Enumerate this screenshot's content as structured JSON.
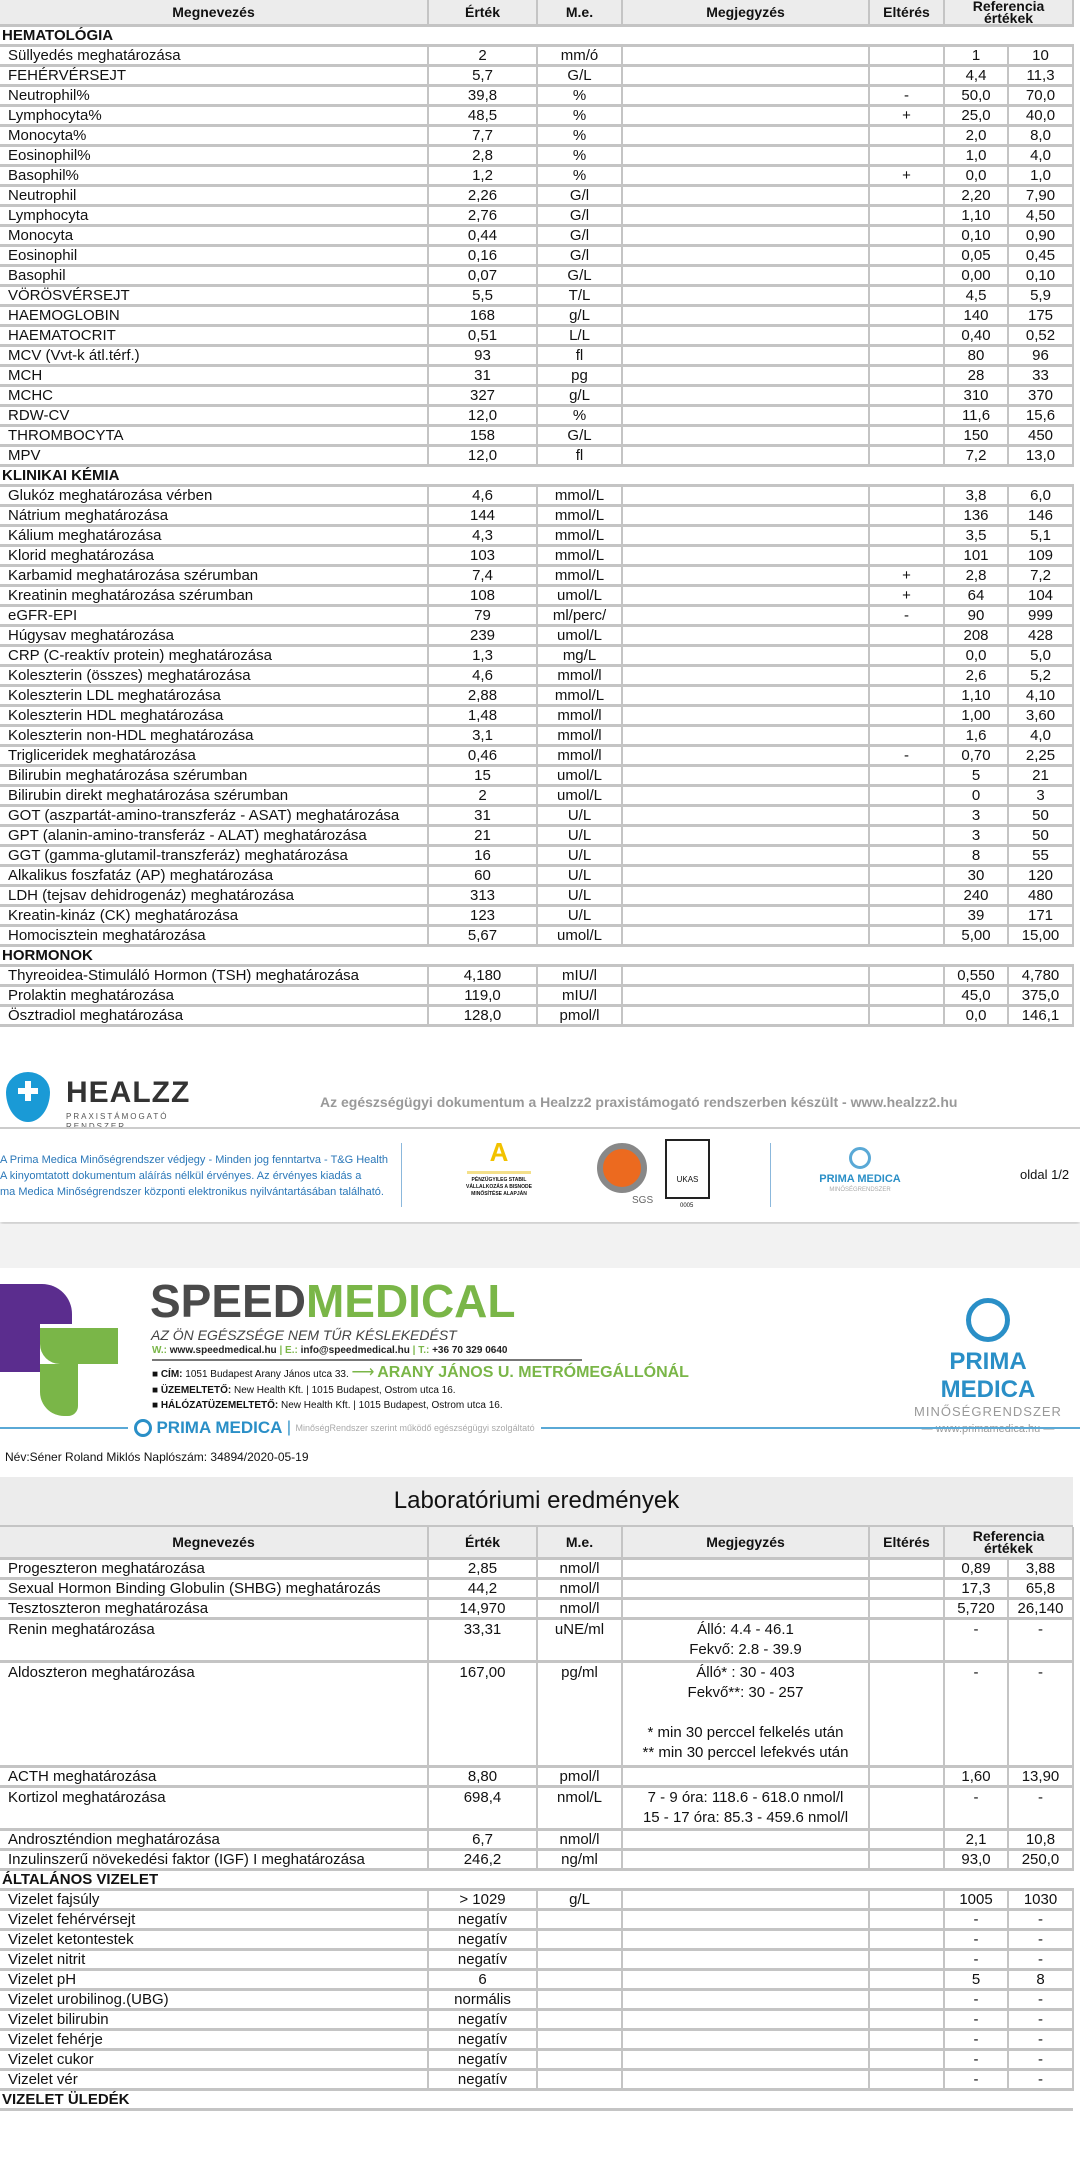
{
  "columns": [
    "Megnevezés",
    "Érték",
    "M.e.",
    "Megjegyzés",
    "Eltérés",
    "Referencia értékek"
  ],
  "page1_rows": [
    {
      "section": "HEMATOLÓGIA"
    },
    [
      "Süllyedés meghatározása",
      "2",
      "mm/ó",
      "",
      "",
      "1",
      "10"
    ],
    [
      "FEHÉRVÉRSEJT",
      "5,7",
      "G/L",
      "",
      "",
      "4,4",
      "11,3"
    ],
    [
      "Neutrophil%",
      "39,8",
      "%",
      "",
      "-",
      "50,0",
      "70,0"
    ],
    [
      "Lymphocyta%",
      "48,5",
      "%",
      "",
      "+",
      "25,0",
      "40,0"
    ],
    [
      "Monocyta%",
      "7,7",
      "%",
      "",
      "",
      "2,0",
      "8,0"
    ],
    [
      "Eosinophil%",
      "2,8",
      "%",
      "",
      "",
      "1,0",
      "4,0"
    ],
    [
      "Basophil%",
      "1,2",
      "%",
      "",
      "+",
      "0,0",
      "1,0"
    ],
    [
      "Neutrophil",
      "2,26",
      "G/l",
      "",
      "",
      "2,20",
      "7,90"
    ],
    [
      "Lymphocyta",
      "2,76",
      "G/l",
      "",
      "",
      "1,10",
      "4,50"
    ],
    [
      "Monocyta",
      "0,44",
      "G/l",
      "",
      "",
      "0,10",
      "0,90"
    ],
    [
      "Eosinophil",
      "0,16",
      "G/l",
      "",
      "",
      "0,05",
      "0,45"
    ],
    [
      "Basophil",
      "0,07",
      "G/L",
      "",
      "",
      "0,00",
      "0,10"
    ],
    [
      "VÖRÖSVÉRSEJT",
      "5,5",
      "T/L",
      "",
      "",
      "4,5",
      "5,9"
    ],
    [
      "HAEMOGLOBIN",
      "168",
      "g/L",
      "",
      "",
      "140",
      "175"
    ],
    [
      "HAEMATOCRIT",
      "0,51",
      "L/L",
      "",
      "",
      "0,40",
      "0,52"
    ],
    [
      "MCV (Vvt-k átl.térf.)",
      "93",
      "fl",
      "",
      "",
      "80",
      "96"
    ],
    [
      "MCH",
      "31",
      "pg",
      "",
      "",
      "28",
      "33"
    ],
    [
      "MCHC",
      "327",
      "g/L",
      "",
      "",
      "310",
      "370"
    ],
    [
      "RDW-CV",
      "12,0",
      "%",
      "",
      "",
      "11,6",
      "15,6"
    ],
    [
      "THROMBOCYTA",
      "158",
      "G/L",
      "",
      "",
      "150",
      "450"
    ],
    [
      "MPV",
      "12,0",
      "fl",
      "",
      "",
      "7,2",
      "13,0"
    ],
    {
      "section": "KLINIKAI KÉMIA"
    },
    [
      "Glukóz meghatározása vérben",
      "4,6",
      "mmol/L",
      "",
      "",
      "3,8",
      "6,0"
    ],
    [
      "Nátrium meghatározása",
      "144",
      "mmol/L",
      "",
      "",
      "136",
      "146"
    ],
    [
      "Kálium meghatározása",
      "4,3",
      "mmol/L",
      "",
      "",
      "3,5",
      "5,1"
    ],
    [
      "Klorid meghatározása",
      "103",
      "mmol/L",
      "",
      "",
      "101",
      "109"
    ],
    [
      "Karbamid meghatározása szérumban",
      "7,4",
      "mmol/L",
      "",
      "+",
      "2,8",
      "7,2"
    ],
    [
      "Kreatinin meghatározása szérumban",
      "108",
      "umol/L",
      "",
      "+",
      "64",
      "104"
    ],
    [
      "eGFR-EPI",
      "79",
      "ml/perc/",
      "",
      "-",
      "90",
      "999"
    ],
    [
      "Húgysav meghatározása",
      "239",
      "umol/L",
      "",
      "",
      "208",
      "428"
    ],
    [
      "CRP (C-reaktív protein) meghatározása",
      "1,3",
      "mg/L",
      "",
      "",
      "0,0",
      "5,0"
    ],
    [
      "Koleszterin (összes) meghatározása",
      "4,6",
      "mmol/l",
      "",
      "",
      "2,6",
      "5,2"
    ],
    [
      "Koleszterin LDL meghatározása",
      "2,88",
      "mmol/L",
      "",
      "",
      "1,10",
      "4,10"
    ],
    [
      "Koleszterin HDL meghatározása",
      "1,48",
      "mmol/l",
      "",
      "",
      "1,00",
      "3,60"
    ],
    [
      "Koleszterin non-HDL meghatározása",
      "3,1",
      "mmol/l",
      "",
      "",
      "1,6",
      "4,0"
    ],
    [
      "Trigliceridek meghatározása",
      "0,46",
      "mmol/l",
      "",
      "-",
      "0,70",
      "2,25"
    ],
    [
      "Bilirubin meghatározása szérumban",
      "15",
      "umol/L",
      "",
      "",
      "5",
      "21"
    ],
    [
      "Bilirubin direkt meghatározása szérumban",
      "2",
      "umol/L",
      "",
      "",
      "0",
      "3"
    ],
    [
      "GOT (aszpartát-amino-transzferáz - ASAT) meghatározása",
      "31",
      "U/L",
      "",
      "",
      "3",
      "50"
    ],
    [
      "GPT (alanin-amino-transferáz - ALAT) meghatározása",
      "21",
      "U/L",
      "",
      "",
      "3",
      "50"
    ],
    [
      "GGT (gamma-glutamil-transzferáz) meghatározása",
      "16",
      "U/L",
      "",
      "",
      "8",
      "55"
    ],
    [
      "Alkalikus foszfatáz (AP) meghatározása",
      "60",
      "U/L",
      "",
      "",
      "30",
      "120"
    ],
    [
      "LDH (tejsav dehidrogenáz) meghatározása",
      "313",
      "U/L",
      "",
      "",
      "240",
      "480"
    ],
    [
      "Kreatin-kináz (CK) meghatározása",
      "123",
      "U/L",
      "",
      "",
      "39",
      "171"
    ],
    [
      "Homocisztein meghatározása",
      "5,67",
      "umol/L",
      "",
      "",
      "5,00",
      "15,00"
    ],
    {
      "section": "HORMONOK"
    },
    [
      "Thyreoidea-Stimuláló Hormon (TSH) meghatározása",
      "4,180",
      "mIU/l",
      "",
      "",
      "0,550",
      "4,780"
    ],
    [
      "Prolaktin meghatározása",
      "119,0",
      "mIU/l",
      "",
      "",
      "45,0",
      "375,0"
    ],
    [
      "Ösztradiol meghatározása",
      "128,0",
      "pmol/l",
      "",
      "",
      "0,0",
      "146,1"
    ]
  ],
  "healzz": {
    "logo_text": "HEALZZ",
    "logo_sub": "PRAXISTÁMOGATÓ RENDSZER",
    "tagline": "Az egészségügyi dokumentum a Healzz2 praxistámogató rendszerben készült - www.healzz2.hu",
    "disclaimer": [
      "A Prima Medica Minőségrendszer védjegy -  Minden jog fenntartva - T&G Health",
      "A kinyomtatott dokumentum aláírás nélkül érvényes. Az érvényes kiadás a",
      "ma Medica Minőségrendszer központi elektronikus nyilvántartásában található."
    ],
    "badge_a_text": "PÉNZÜGYILEG STABIL VÁLLALKOZÁS A BISNODE MINŐSÍTÉSE ALAPJÁN",
    "sgs": "SGS",
    "ukas": "UKAS",
    "ukas_num": "0005",
    "prima": "PRIMA MEDICA",
    "prima_sub": "MINŐSÉGRENDSZER",
    "page": "oldal 1/2"
  },
  "speedmedical": {
    "speed": "SPEED",
    "medical": "MEDICAL",
    "tagline": "AZ ÖN EGÉSZSÉGE NEM TŰR KÉSLEKEDÉST",
    "contact_w": "W.:",
    "web": "www.speedmedical.hu",
    "contact_e": "E.:",
    "email": "info@speedmedical.hu",
    "contact_t": "T.:",
    "phone": "+36 70 329 0640",
    "addr_label": "CÍM:",
    "addr": "1051 Budapest Arany János utca 33.",
    "metro": "ARANY JÁNOS U. METRÓMEGÁLLÓNÁL",
    "op_label": "ÜZEMELTETŐ:",
    "op": "New Health Kft.  |  1015 Budapest, Ostrom utca 16.",
    "net_label": "HÁLÓZATÜZEMELTETŐ:",
    "net": "New Health Kft.  |  1015 Budapest, Ostrom utca 16.",
    "prima": "PRIMA MEDICA",
    "prima_sub": "MINŐSÉGRENDSZER",
    "prima_web": "www.primamedica.hu",
    "prima_line": "MinőségRendszer szerint működő egészségügyi szolgáltató"
  },
  "patient_line": "Név:Séner  Roland Miklós Naplószám: 34894/2020-05-19",
  "page2_title": "Laboratóriumi eredmények",
  "page2_rows": [
    [
      "Progeszteron meghatározása",
      "2,85",
      "nmol/l",
      "",
      "",
      "0,89",
      "3,88"
    ],
    [
      "Sexual Hormon Binding Globulin (SHBG) meghatározás",
      "44,2",
      "nmol/l",
      "",
      "",
      "17,3",
      "65,8"
    ],
    [
      "Tesztoszteron meghatározása",
      "14,970",
      "nmol/l",
      "",
      "",
      "5,720",
      "26,140"
    ],
    [
      "Renin meghatározása",
      "33,31",
      "uNE/ml",
      "Álló: 4.4 - 46.1\nFekvő: 2.8 - 39.9",
      "",
      "-",
      "-"
    ],
    [
      "Aldoszteron meghatározása",
      "167,00",
      "pg/ml",
      "Álló* : 30 - 403\nFekvő**: 30 - 257\n\n* min 30 perccel felkelés után\n** min 30 perccel lefekvés után",
      "",
      "-",
      "-"
    ],
    [
      "ACTH meghatározása",
      "8,80",
      "pmol/l",
      "",
      "",
      "1,60",
      "13,90"
    ],
    [
      "Kortizol meghatározása",
      "698,4",
      "nmol/L",
      "7 - 9 óra: 118.6 - 618.0 nmol/l\n15 - 17 óra: 85.3 - 459.6 nmol/l",
      "",
      "-",
      "-"
    ],
    [
      "Androszténdion meghatározása",
      "6,7",
      "nmol/l",
      "",
      "",
      "2,1",
      "10,8"
    ],
    [
      "Inzulinszerű növekedési faktor (IGF) I meghatározása",
      "246,2",
      "ng/ml",
      "",
      "",
      "93,0",
      "250,0"
    ],
    {
      "section": "ÁLTALÁNOS VIZELET"
    },
    [
      "Vizelet fajsúly",
      "> 1029",
      "g/L",
      "",
      "",
      "1005",
      "1030"
    ],
    [
      "Vizelet fehérvérsejt",
      "negatív",
      "",
      "",
      "",
      "-",
      "-"
    ],
    [
      "Vizelet ketontestek",
      "negatív",
      "",
      "",
      "",
      "-",
      "-"
    ],
    [
      "Vizelet nitrit",
      "negatív",
      "",
      "",
      "",
      "-",
      "-"
    ],
    [
      "Vizelet pH",
      "6",
      "",
      "",
      "",
      "5",
      "8"
    ],
    [
      "Vizelet urobilinog.(UBG)",
      "normális",
      "",
      "",
      "",
      "-",
      "-"
    ],
    [
      "Vizelet bilirubin",
      "negatív",
      "",
      "",
      "",
      "-",
      "-"
    ],
    [
      "Vizelet fehérje",
      "negatív",
      "",
      "",
      "",
      "-",
      "-"
    ],
    [
      "Vizelet cukor",
      "negatív",
      "",
      "",
      "",
      "-",
      "-"
    ],
    [
      "Vizelet vér",
      "negatív",
      "",
      "",
      "",
      "-",
      "-"
    ],
    {
      "section": "VIZELET ÜLEDÉK"
    }
  ],
  "colors": {
    "header_bg": "#ececec",
    "border": "#c4c4c4",
    "healzz_blue": "#1a9ad6",
    "speed_gray": "#4a4a4a",
    "speed_green": "#7ab648",
    "speed_purple": "#5b2d8e",
    "prima_blue": "#2a8fc7"
  }
}
